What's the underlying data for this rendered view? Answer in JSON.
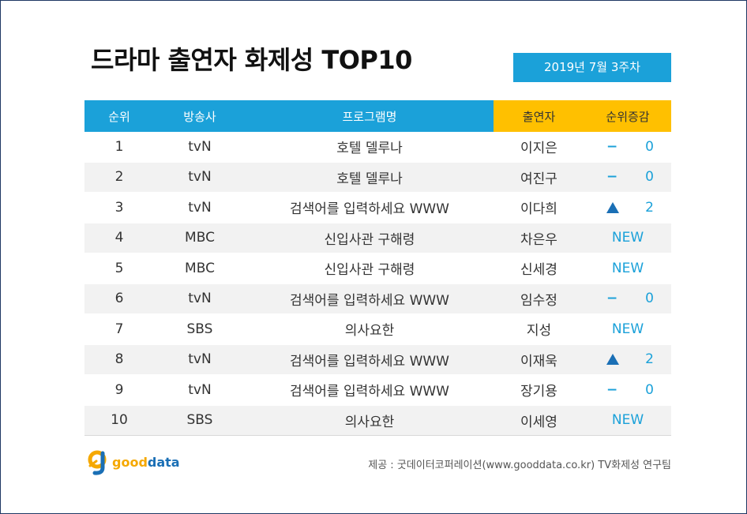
{
  "title": "드라마 출연자 화제성 TOP10",
  "week": "2019년  7월 3주차",
  "columns": {
    "rank": "순위",
    "broadcaster": "방송사",
    "program": "프로그램명",
    "cast": "출연자",
    "change": "순위증감"
  },
  "rows": [
    {
      "rank": "1",
      "broadcaster": "tvN",
      "program": "호텔 델루나",
      "cast": "이지은",
      "change_type": "same",
      "change_symbol": "−",
      "change_value": "0"
    },
    {
      "rank": "2",
      "broadcaster": "tvN",
      "program": "호텔 델루나",
      "cast": "여진구",
      "change_type": "same",
      "change_symbol": "−",
      "change_value": "0"
    },
    {
      "rank": "3",
      "broadcaster": "tvN",
      "program": "검색어를 입력하세요 WWW",
      "cast": "이다희",
      "change_type": "up",
      "change_symbol": "",
      "change_value": "2"
    },
    {
      "rank": "4",
      "broadcaster": "MBC",
      "program": "신입사관 구해령",
      "cast": "차은우",
      "change_type": "new",
      "change_symbol": "",
      "change_value": "NEW"
    },
    {
      "rank": "5",
      "broadcaster": "MBC",
      "program": "신입사관 구해령",
      "cast": "신세경",
      "change_type": "new",
      "change_symbol": "",
      "change_value": "NEW"
    },
    {
      "rank": "6",
      "broadcaster": "tvN",
      "program": "검색어를 입력하세요 WWW",
      "cast": "임수정",
      "change_type": "same",
      "change_symbol": "−",
      "change_value": "0"
    },
    {
      "rank": "7",
      "broadcaster": "SBS",
      "program": "의사요한",
      "cast": "지성",
      "change_type": "new",
      "change_symbol": "",
      "change_value": "NEW"
    },
    {
      "rank": "8",
      "broadcaster": "tvN",
      "program": "검색어를 입력하세요 WWW",
      "cast": "이재욱",
      "change_type": "up",
      "change_symbol": "",
      "change_value": "2"
    },
    {
      "rank": "9",
      "broadcaster": "tvN",
      "program": "검색어를 입력하세요 WWW",
      "cast": "장기용",
      "change_type": "same",
      "change_symbol": "−",
      "change_value": "0"
    },
    {
      "rank": "10",
      "broadcaster": "SBS",
      "program": "의사요한",
      "cast": "이세영",
      "change_type": "new",
      "change_symbol": "",
      "change_value": "NEW"
    }
  ],
  "logo": {
    "part1": "good",
    "part2": "data"
  },
  "credit": "제공 : 굿데이터코퍼레이션(www.gooddata.co.kr) TV화제성 연구팀",
  "colors": {
    "header_blue": "#1ba1d9",
    "header_yellow": "#ffc000",
    "up_arrow": "#1a6fb5",
    "frame": "#1f3864"
  },
  "icons": {
    "up": "triangle-up-icon",
    "logo": "gooddata-logo-icon"
  }
}
